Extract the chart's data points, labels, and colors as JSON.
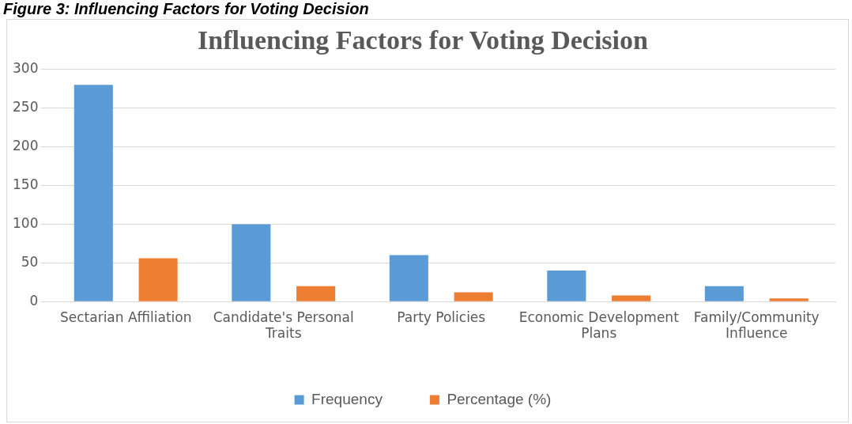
{
  "chart_data": {
    "type": "bar",
    "title": "Influencing Factors for Voting Decision",
    "annotations": [
      "Figure 3: Influencing Factors for Voting Decision"
    ],
    "categories": [
      "Sectarian Affiliation",
      "Candidate's Personal Traits",
      "Party Policies",
      "Economic Development Plans",
      "Family/Community Influence"
    ],
    "series": [
      {
        "name": "Frequency",
        "color": "#5b9bd5",
        "values": [
          280,
          100,
          60,
          40,
          20
        ]
      },
      {
        "name": "Percentage (%)",
        "color": "#ed7d31",
        "values": [
          56,
          20,
          12,
          8,
          4
        ]
      }
    ],
    "ylim": [
      0,
      300
    ],
    "yticks": [
      0,
      50,
      100,
      150,
      200,
      250,
      300
    ],
    "grid": "y",
    "legend": "bottom"
  }
}
